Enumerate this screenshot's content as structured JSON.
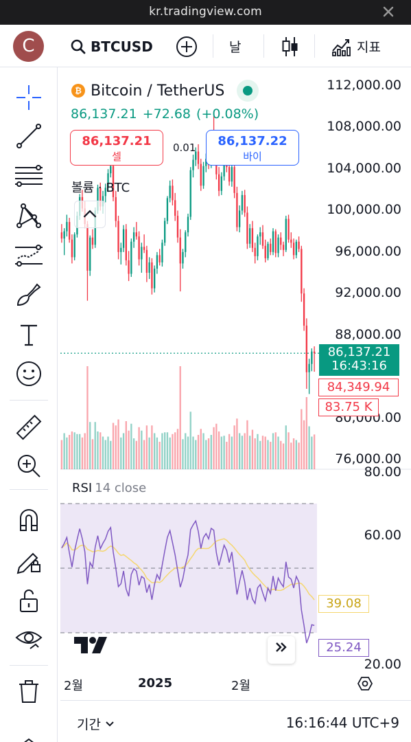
{
  "browser": {
    "url": "kr.tradingview.com"
  },
  "header": {
    "avatar_letter": "C",
    "symbol": "BTCUSD",
    "interval": "날",
    "indicators_label": "지표"
  },
  "legend": {
    "title": "Bitcoin / TetherUS",
    "last": "86,137.21",
    "change": "+72.68",
    "change_pct": "(+0.08%)",
    "sell_price": "86,137.21",
    "sell_label": "셀",
    "spread": "0.01",
    "buy_price": "86,137.22",
    "buy_label": "바이",
    "volume_label": "볼륨 · BTC",
    "rsi_name": "RSI",
    "rsi_params": "14 close"
  },
  "price_scale": [
    "112,000.00",
    "108,000.00",
    "104,000.00",
    "100,000.00",
    "96,000.00",
    "92,000.00",
    "88,000.00",
    "80,000.00",
    "76,000.00"
  ],
  "price_tags": {
    "last_price": "86,137.21",
    "countdown": "16:43:16",
    "low_price": "84,349.94",
    "volume": "83.75 K"
  },
  "rsi_scale": [
    "80.00",
    "60.00",
    "20.00"
  ],
  "rsi_tags": {
    "ma": "39.08",
    "rsi": "25.24"
  },
  "time_scale": [
    "2월",
    "2025",
    "2월"
  ],
  "bottom": {
    "range_label": "기간",
    "clock": "16:16:44 UTC+9"
  },
  "colors": {
    "up": "#089981",
    "down": "#f23645",
    "rsi_line": "#7e57c2",
    "rsi_ma": "#f5d76e",
    "rsi_band": "#ede7f6",
    "accent": "#2962ff"
  },
  "chart_data": {
    "type": "candlestick",
    "price_unit": "USDT",
    "candles_ohlc": [
      [
        97800,
        98600,
        96800,
        97200
      ],
      [
        97200,
        98200,
        95600,
        97900
      ],
      [
        97900,
        99500,
        97400,
        98800
      ],
      [
        98800,
        99200,
        96800,
        97100
      ],
      [
        97100,
        97600,
        94800,
        95400
      ],
      [
        95400,
        97800,
        95100,
        97600
      ],
      [
        97600,
        99800,
        97300,
        99400
      ],
      [
        99400,
        101500,
        99000,
        101200
      ],
      [
        101200,
        101900,
        99800,
        100100
      ],
      [
        100100,
        100800,
        98200,
        98600
      ],
      [
        98600,
        98900,
        91200,
        94100
      ],
      [
        94100,
        97500,
        93600,
        97300
      ],
      [
        97300,
        98100,
        96200,
        96600
      ],
      [
        96600,
        100200,
        96300,
        99900
      ],
      [
        99900,
        102400,
        99600,
        102100
      ],
      [
        102100,
        102600,
        99900,
        100300
      ],
      [
        100300,
        101800,
        99600,
        101300
      ],
      [
        101300,
        102500,
        100700,
        102100
      ],
      [
        102100,
        103900,
        101700,
        103500
      ],
      [
        103500,
        104800,
        103100,
        104200
      ],
      [
        104200,
        104600,
        100800,
        101200
      ],
      [
        101200,
        101800,
        98300,
        98900
      ],
      [
        98900,
        99400,
        95200,
        95900
      ],
      [
        95900,
        96800,
        94700,
        96300
      ],
      [
        96300,
        98500,
        95900,
        98100
      ],
      [
        98100,
        98600,
        94600,
        95100
      ],
      [
        95100,
        96000,
        93100,
        93800
      ],
      [
        93800,
        97200,
        93500,
        96900
      ],
      [
        96900,
        98300,
        96300,
        97800
      ],
      [
        97800,
        98800,
        97100,
        97400
      ],
      [
        97400,
        97900,
        94600,
        95200
      ],
      [
        95200,
        96800,
        93900,
        96400
      ],
      [
        96400,
        97600,
        95800,
        96100
      ],
      [
        96100,
        96500,
        93000,
        93900
      ],
      [
        93900,
        95400,
        93300,
        94900
      ],
      [
        94900,
        95300,
        91800,
        92400
      ],
      [
        92400,
        94600,
        92000,
        94300
      ],
      [
        94300,
        95900,
        93800,
        95600
      ],
      [
        95600,
        96200,
        94600,
        94900
      ],
      [
        94900,
        97100,
        94500,
        96800
      ],
      [
        96800,
        99200,
        96500,
        98900
      ],
      [
        98900,
        101300,
        98600,
        101100
      ],
      [
        101100,
        102800,
        100700,
        102300
      ],
      [
        102300,
        102900,
        100400,
        100900
      ],
      [
        100900,
        101600,
        98900,
        99400
      ],
      [
        99400,
        99900,
        96800,
        97300
      ],
      [
        97300,
        98100,
        92100,
        94800
      ],
      [
        94800,
        96200,
        94300,
        95900
      ],
      [
        95900,
        98000,
        95400,
        97800
      ],
      [
        97800,
        99600,
        97400,
        99300
      ],
      [
        99300,
        104100,
        99000,
        103800
      ],
      [
        103800,
        105300,
        103100,
        104800
      ],
      [
        104800,
        106000,
        104200,
        105600
      ],
      [
        105600,
        106300,
        103900,
        104400
      ],
      [
        104400,
        104900,
        101800,
        102300
      ],
      [
        102300,
        104600,
        102000,
        104200
      ],
      [
        104200,
        105400,
        103600,
        104900
      ],
      [
        104900,
        105900,
        103900,
        104300
      ],
      [
        104300,
        106400,
        104000,
        106100
      ],
      [
        106100,
        109000,
        105700,
        105900
      ],
      [
        105900,
        106600,
        102900,
        103400
      ],
      [
        103400,
        104100,
        101300,
        101800
      ],
      [
        101800,
        103600,
        101400,
        103200
      ],
      [
        103200,
        105100,
        102800,
        104700
      ],
      [
        104700,
        105200,
        103600,
        104100
      ],
      [
        104100,
        104800,
        102300,
        102700
      ],
      [
        102700,
        104400,
        102200,
        104100
      ],
      [
        104100,
        104600,
        101100,
        101600
      ],
      [
        101600,
        102200,
        97900,
        98300
      ],
      [
        98300,
        100400,
        97800,
        99900
      ],
      [
        99900,
        101800,
        99500,
        101400
      ],
      [
        101400,
        101900,
        99300,
        99700
      ],
      [
        99700,
        100300,
        96200,
        96700
      ],
      [
        96700,
        98600,
        96300,
        98200
      ],
      [
        98200,
        98900,
        95900,
        96300
      ],
      [
        96300,
        96800,
        94800,
        95500
      ],
      [
        95500,
        97600,
        95100,
        97400
      ],
      [
        97400,
        98300,
        96600,
        97800
      ],
      [
        97800,
        98500,
        96200,
        96500
      ],
      [
        96500,
        97100,
        94900,
        95300
      ],
      [
        95300,
        96900,
        95100,
        96700
      ],
      [
        96700,
        97200,
        95600,
        95900
      ],
      [
        95900,
        98200,
        95600,
        97900
      ],
      [
        97900,
        98100,
        95400,
        95800
      ],
      [
        95800,
        97600,
        95400,
        97300
      ],
      [
        97300,
        97800,
        96100,
        96600
      ],
      [
        96600,
        96900,
        95500,
        96100
      ],
      [
        96100,
        99400,
        95900,
        99100
      ],
      [
        99100,
        99500,
        96800,
        97100
      ],
      [
        97100,
        97800,
        96300,
        96800
      ],
      [
        96800,
        97200,
        95200,
        95600
      ],
      [
        95600,
        97100,
        95300,
        96900
      ],
      [
        96900,
        97400,
        95900,
        96200
      ],
      [
        96200,
        96500,
        91100,
        91900
      ],
      [
        91900,
        92400,
        88300,
        88800
      ],
      [
        88800,
        89500,
        82700,
        84300
      ],
      [
        84300,
        85600,
        82200,
        85100
      ],
      [
        85100,
        86600,
        84400,
        86300
      ],
      [
        86300,
        86800,
        84350,
        86137
      ]
    ],
    "volume_bars_note": "volume histogram under candles",
    "rsi": {
      "period": 14,
      "source": "close",
      "upper_band": 70,
      "middle_band": 50,
      "lower_band": 30,
      "ylim": [
        20,
        80
      ],
      "last_rsi": 25.24,
      "last_ma": 39.08
    },
    "ylim": [
      76000,
      112000
    ],
    "x_ticks": [
      "2월",
      "2025",
      "2월"
    ]
  }
}
